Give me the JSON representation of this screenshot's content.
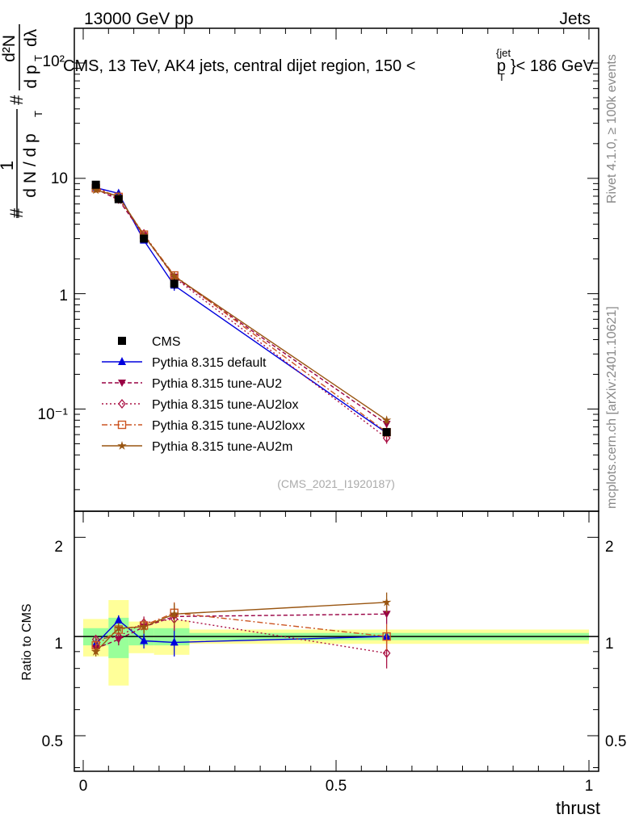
{
  "header": {
    "left": "13000 GeV pp",
    "right": "Jets"
  },
  "side_labels": {
    "rivet": "Rivet 4.1.0, ≥ 100k events",
    "mcplots": "mcplots.cern.ch [arXiv:2401.10621]"
  },
  "main_plot": {
    "title": "CMS, 13 TeV, AK4 jets, central dijet region, 150 <",
    "title_p": "p",
    "title_sub": "T",
    "title_sup": "{jet",
    "title_tail": "}< 186 GeV",
    "ylabel_parts": {
      "hash1": "#",
      "frac1_num": "1",
      "frac1_den": "d N / d p",
      "frac1_den_sub": "T",
      "hash2": "#",
      "frac2_num": "d²N",
      "frac2_den": "d p",
      "frac2_den_sub": "T",
      "frac2_den_tail": "dλ"
    },
    "watermark": "(CMS_2021_I1920187)",
    "ytick_labels": [
      "10⁻¹",
      "1",
      "10",
      "10²"
    ]
  },
  "ratio_plot": {
    "ylabel": "Ratio to CMS",
    "ytick_labels": [
      "0.5",
      "1",
      "2"
    ],
    "ytick_labels_right": [
      "0.5",
      "1",
      "2"
    ]
  },
  "x_axis": {
    "label": "thrust",
    "tick_labels": [
      "0",
      "0.5",
      "1"
    ]
  },
  "legend": [
    {
      "label": "CMS",
      "color": "#000000",
      "marker": "square",
      "line": "none"
    },
    {
      "label": "Pythia 8.315 default",
      "color": "#0000dd",
      "marker": "triangle-up",
      "line": "solid"
    },
    {
      "label": "Pythia 8.315 tune-AU2",
      "color": "#990044",
      "marker": "triangle-down",
      "line": "dashed"
    },
    {
      "label": "Pythia 8.315 tune-AU2lox",
      "color": "#aa1144",
      "marker": "diamond-open",
      "line": "dotted"
    },
    {
      "label": "Pythia 8.315 tune-AU2loxx",
      "color": "#cc5522",
      "marker": "square-open",
      "line": "dashdot"
    },
    {
      "label": "Pythia 8.315 tune-AU2m",
      "color": "#995511",
      "marker": "star",
      "line": "solid"
    }
  ],
  "chart_data": {
    "type": "line",
    "title": "CMS, 13 TeV, AK4 jets, central dijet region, 150 < p_T^{jet} < 186 GeV",
    "xlabel": "thrust",
    "ylabel": "1/N dN/dp_T d²N/dp_T dλ",
    "xlim": [
      0,
      1
    ],
    "ylim_log": [
      0.013,
      200
    ],
    "ratio_ylim_log": [
      0.39,
      2.4
    ],
    "bins": [
      [
        0.0,
        0.05
      ],
      [
        0.05,
        0.09
      ],
      [
        0.09,
        0.14
      ],
      [
        0.14,
        0.21
      ],
      [
        0.21,
        1.0
      ]
    ],
    "x": [
      0.025,
      0.07,
      0.12,
      0.18,
      0.6
    ],
    "data": {
      "name": "CMS",
      "values": [
        8.8,
        6.6,
        3.0,
        1.22,
        0.063
      ],
      "errors": [
        0.4,
        0.35,
        0.15,
        0.12,
        0.004
      ],
      "band_stat_lo": [
        0.94,
        0.86,
        0.94,
        0.94,
        0.975
      ],
      "band_stat_hi": [
        1.06,
        1.14,
        1.06,
        1.06,
        1.025
      ],
      "band_tot_lo": [
        0.87,
        0.71,
        0.89,
        0.88,
        0.95
      ],
      "band_tot_hi": [
        1.13,
        1.29,
        1.11,
        1.12,
        1.05
      ]
    },
    "series": [
      {
        "name": "Pythia 8.315 default",
        "values": [
          8.3,
          7.4,
          2.9,
          1.18,
          0.062
        ],
        "errors": [
          0.25,
          0.3,
          0.15,
          0.12,
          0.004
        ]
      },
      {
        "name": "Pythia 8.315 tune-AU2",
        "values": [
          8.1,
          6.5,
          3.2,
          1.4,
          0.074
        ],
        "errors": [
          0.25,
          0.3,
          0.15,
          0.12,
          0.006
        ]
      },
      {
        "name": "Pythia 8.315 tune-AU2lox",
        "values": [
          8.5,
          6.6,
          3.3,
          1.38,
          0.056
        ],
        "errors": [
          0.25,
          0.3,
          0.15,
          0.12,
          0.006
        ]
      },
      {
        "name": "Pythia 8.315 tune-AU2loxx",
        "values": [
          8.2,
          6.9,
          3.25,
          1.44,
          0.063
        ],
        "errors": [
          0.25,
          0.3,
          0.15,
          0.12,
          0.006
        ]
      },
      {
        "name": "Pythia 8.315 tune-AU2m",
        "values": [
          7.9,
          7.0,
          3.2,
          1.42,
          0.08
        ],
        "errors": [
          0.25,
          0.3,
          0.15,
          0.12,
          0.006
        ]
      }
    ],
    "ratios": [
      {
        "name": "Pythia 8.315 default",
        "values": [
          0.95,
          1.12,
          0.97,
          0.96,
          1.0
        ],
        "errors": [
          0.03,
          0.04,
          0.05,
          0.09,
          0.03
        ]
      },
      {
        "name": "Pythia 8.315 tune-AU2",
        "values": [
          0.92,
          0.98,
          1.07,
          1.15,
          1.17
        ],
        "errors": [
          0.03,
          0.04,
          0.05,
          0.09,
          0.08
        ]
      },
      {
        "name": "Pythia 8.315 tune-AU2lox",
        "values": [
          0.98,
          1.0,
          1.1,
          1.13,
          0.89
        ],
        "errors": [
          0.03,
          0.04,
          0.05,
          0.09,
          0.09
        ]
      },
      {
        "name": "Pythia 8.315 tune-AU2loxx",
        "values": [
          0.94,
          1.05,
          1.08,
          1.18,
          1.0
        ],
        "errors": [
          0.03,
          0.04,
          0.05,
          0.09,
          0.09
        ]
      },
      {
        "name": "Pythia 8.315 tune-AU2m",
        "values": [
          0.9,
          1.06,
          1.07,
          1.17,
          1.27
        ],
        "errors": [
          0.03,
          0.04,
          0.05,
          0.09,
          0.09
        ]
      }
    ],
    "legend_position": "center-left"
  }
}
